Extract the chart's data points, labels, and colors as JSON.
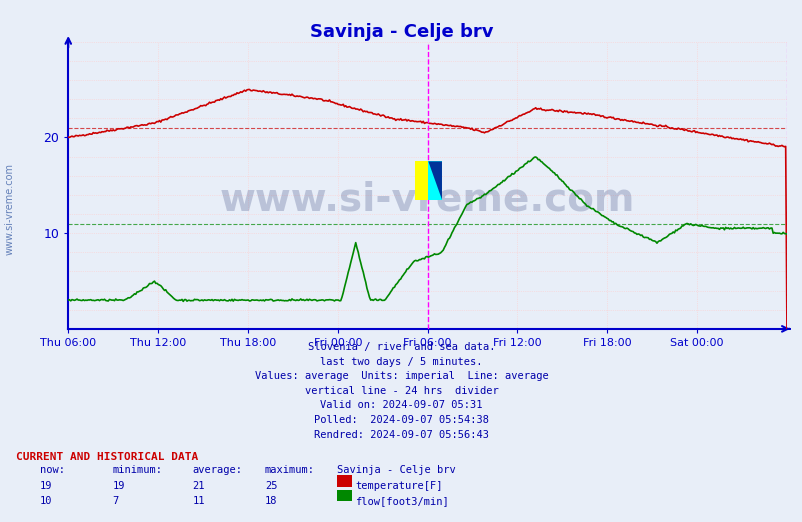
{
  "title": "Savinja - Celje brv",
  "title_color": "#0000cc",
  "background_color": "#e8eef8",
  "plot_bg_color": "#e8eef8",
  "grid_color": "#ffcccc",
  "axis_color": "#0000cc",
  "text_color": "#0000aa",
  "watermark": "www.si-vreme.com",
  "watermark_color": "#4466aa",
  "xlabel_ticks": [
    "Thu 06:00",
    "Thu 12:00",
    "Thu 18:00",
    "Fri 00:00",
    "Fri 06:00",
    "Fri 12:00",
    "Fri 18:00",
    "Sat 00:00"
  ],
  "ylim": [
    0,
    30
  ],
  "yticks": [
    10,
    20
  ],
  "temp_color": "#cc0000",
  "flow_color": "#008800",
  "temp_avg_line": 21,
  "flow_avg_line": 11,
  "subtitle_lines": [
    "Slovenia / river and sea data.",
    "last two days / 5 minutes.",
    "Values: average  Units: imperial  Line: average",
    "vertical line - 24 hrs  divider",
    "Valid on: 2024-09-07 05:31",
    "Polled:  2024-09-07 05:54:38",
    "Rendred: 2024-09-07 05:56:43"
  ],
  "table_header": "CURRENT AND HISTORICAL DATA",
  "table_cols": [
    "now:",
    "minimum:",
    "average:",
    "maximum:",
    "Savinja - Celje brv"
  ],
  "temp_row": [
    "19",
    "19",
    "21",
    "25",
    "temperature[F]"
  ],
  "flow_row": [
    "10",
    "7",
    "11",
    "18",
    "flow[foot3/min]"
  ],
  "temp_swatch": "#cc0000",
  "flow_swatch": "#008800"
}
